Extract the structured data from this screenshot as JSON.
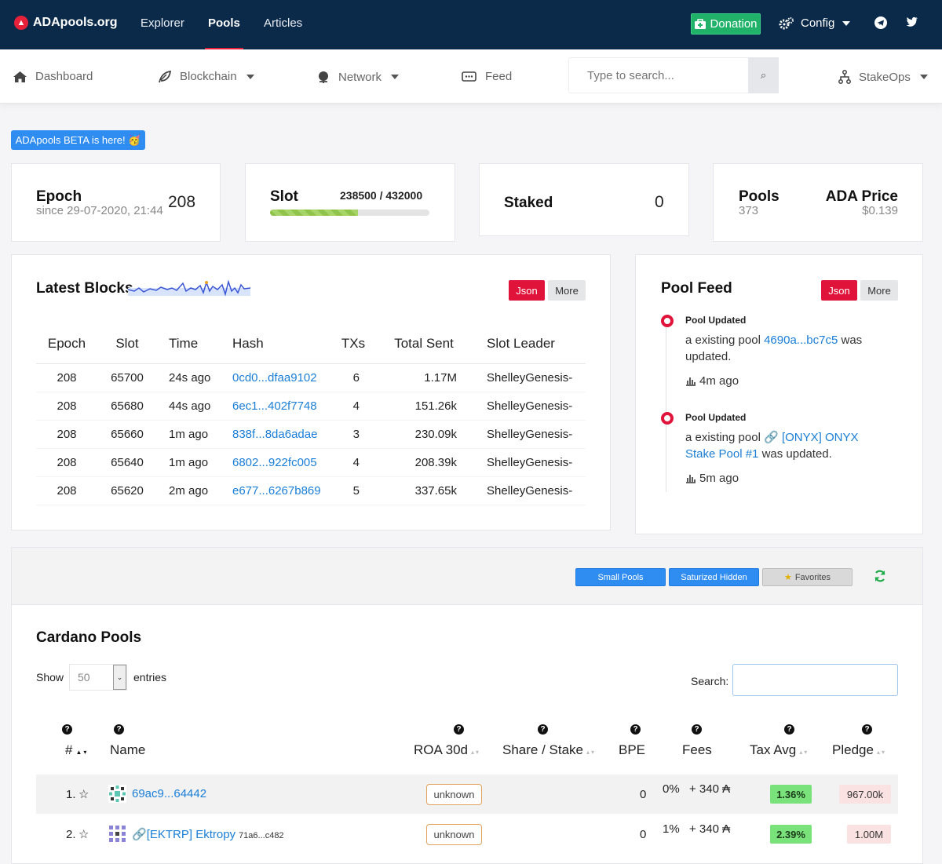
{
  "topbar": {
    "logo": "ADApools.org",
    "nav": [
      "Explorer",
      "Pools",
      "Articles"
    ],
    "donation": "Donation",
    "config": "Config"
  },
  "subnav": {
    "dashboard": "Dashboard",
    "blockchain": "Blockchain",
    "network": "Network",
    "feed": "Feed",
    "search_placeholder": "Type to search...",
    "stakeops": "StakeOps"
  },
  "beta_banner": "ADApools BETA is here! 🥳",
  "stats": {
    "epoch": {
      "title": "Epoch",
      "since": "since 29-07-2020, 21:44",
      "value": "208"
    },
    "slot": {
      "title": "Slot",
      "value": "238500 / 432000",
      "progress": 0.552
    },
    "staked": {
      "title": "Staked",
      "value": "0"
    },
    "pools": {
      "title": "Pools",
      "count": "373"
    },
    "price": {
      "title": "ADA Price",
      "value": "$0.139"
    }
  },
  "latest_blocks": {
    "title": "Latest Blocks",
    "json": "Json",
    "more": "More",
    "columns": [
      "Epoch",
      "Slot",
      "Time",
      "Hash",
      "TXs",
      "Total Sent",
      "Slot Leader"
    ],
    "rows": [
      {
        "epoch": "208",
        "slot": "65700",
        "time": "24s ago",
        "hash": "0cd0...dfaa9102",
        "txs": "6",
        "sent": "1.17M",
        "leader": "ShelleyGenesis-"
      },
      {
        "epoch": "208",
        "slot": "65680",
        "time": "44s ago",
        "hash": "6ec1...402f7748",
        "txs": "4",
        "sent": "151.26k",
        "leader": "ShelleyGenesis-"
      },
      {
        "epoch": "208",
        "slot": "65660",
        "time": "1m ago",
        "hash": "838f...8da6adae",
        "txs": "3",
        "sent": "230.09k",
        "leader": "ShelleyGenesis-"
      },
      {
        "epoch": "208",
        "slot": "65640",
        "time": "1m ago",
        "hash": "6802...922fc005",
        "txs": "4",
        "sent": "208.39k",
        "leader": "ShelleyGenesis-"
      },
      {
        "epoch": "208",
        "slot": "65620",
        "time": "2m ago",
        "hash": "e677...6267b869",
        "txs": "5",
        "sent": "337.65k",
        "leader": "ShelleyGenesis-"
      }
    ]
  },
  "pool_feed": {
    "title": "Pool Feed",
    "json": "Json",
    "more": "More",
    "items": [
      {
        "title": "Pool Updated",
        "prefix": "a existing pool",
        "link": "4690a...bc7c5",
        "suffix": "was updated.",
        "time": "4m ago"
      },
      {
        "title": "Pool Updated",
        "prefix": "a existing pool",
        "link": "[ONYX] ONYX Stake Pool #1",
        "suffix": "was updated.",
        "time": "5m ago"
      }
    ]
  },
  "filters": {
    "small_pools": "Small Pools",
    "saturized_hidden": "Saturized Hidden",
    "favorites": "Favorites"
  },
  "cardano_pools": {
    "title": "Cardano Pools",
    "show": "Show",
    "entries_value": "50",
    "entries": "entries",
    "search_label": "Search:",
    "columns": [
      "#",
      "Name",
      "ROA 30d",
      "Share / Stake",
      "BPE",
      "Fees",
      "Tax Avg",
      "Pledge"
    ],
    "rows": [
      {
        "rank": "1.",
        "name": "69ac9...64442",
        "ticker": "",
        "roa": "unknown",
        "bpe": "0",
        "fee_pct": "0%",
        "fee_fixed": "+ 340 ₳",
        "tax": "1.36%",
        "pledge": "967.00k"
      },
      {
        "rank": "2.",
        "name": "[EKTRP] Ektropy",
        "ticker": "71a6...c482",
        "roa": "unknown",
        "bpe": "0",
        "fee_pct": "1%",
        "fee_fixed": "+ 340 ₳",
        "tax": "2.39%",
        "pledge": "1.00M"
      }
    ]
  }
}
